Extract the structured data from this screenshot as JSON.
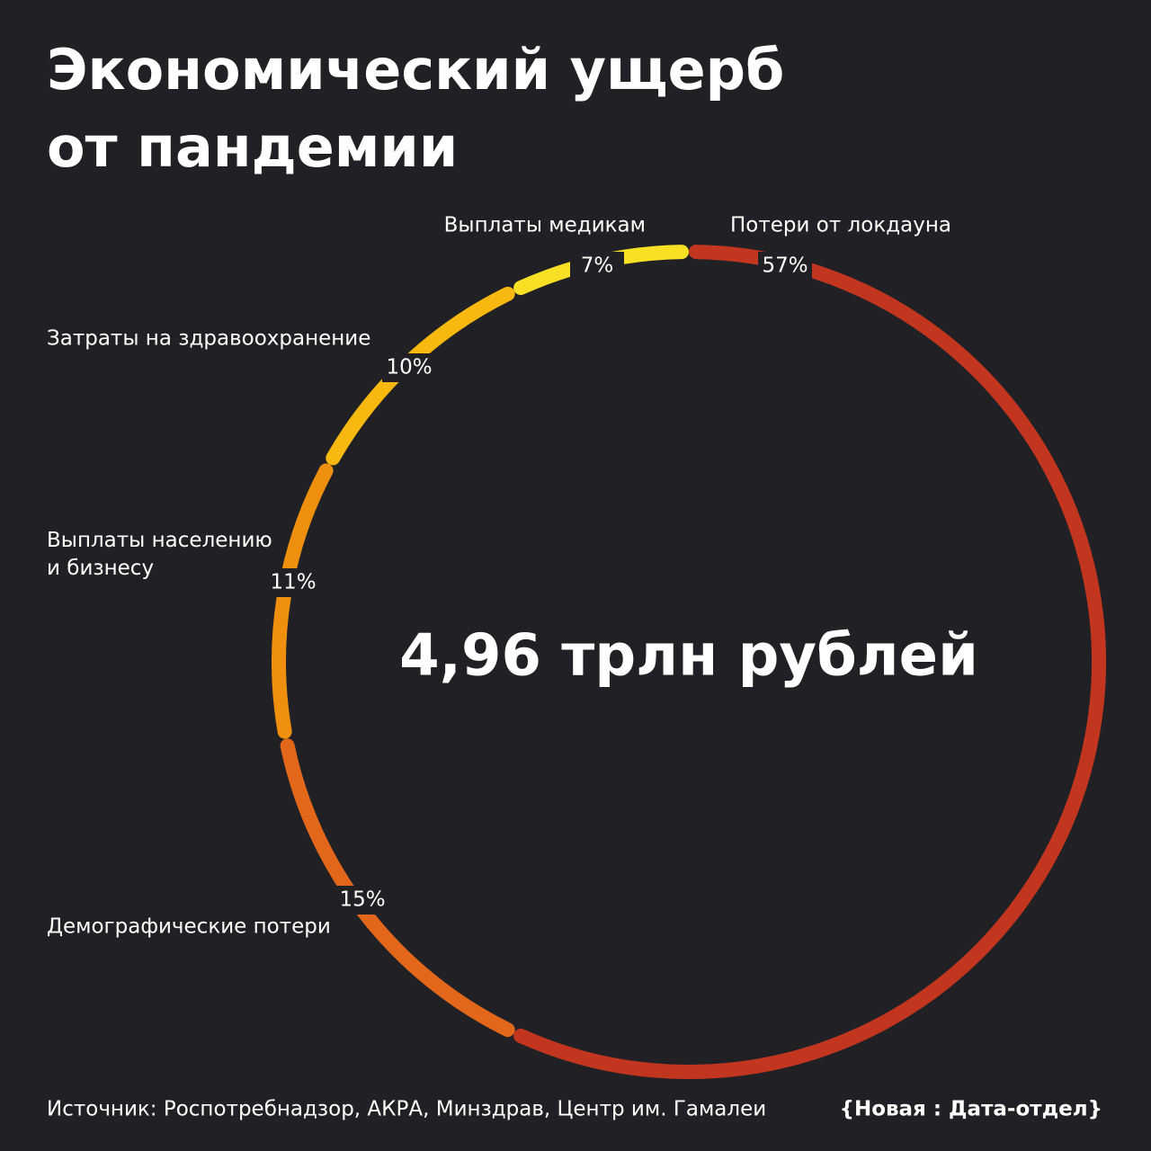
{
  "chart_data": {
    "type": "pie",
    "title": "Экономический ущерб от пандемии",
    "categories": [
      "Потери от локдауна",
      "Демографические потери",
      "Выплаты населению и бизнесу",
      "Затраты на здравоохранение",
      "Выплаты медикам"
    ],
    "values": [
      57,
      15,
      11,
      10,
      7
    ],
    "value_labels": [
      "57%",
      "15%",
      "11%",
      "10%",
      "7%"
    ],
    "colors": [
      "#c2351f",
      "#e2671b",
      "#ee900e",
      "#f7b80f",
      "#f9e024"
    ],
    "center_label": "4,96 трлн рублей",
    "source": "Источник: Роспотребнадзор, АКРА, Минздрав, Центр им. Гамалеи",
    "logo": "{Новая : Дата-отдел}"
  }
}
